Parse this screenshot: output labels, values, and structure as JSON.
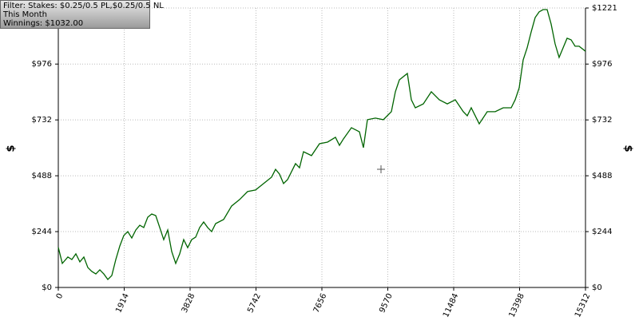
{
  "chart_data": {
    "type": "line",
    "ylabel": "$",
    "annotations": [
      "Filter: Stakes: $0.25/0.5 PL,$0.25/0.5 NL",
      "This Month",
      "Winnings: $1032.00"
    ],
    "xlim": [
      0,
      15312
    ],
    "xticks": [
      0,
      1914,
      3828,
      5742,
      7656,
      9570,
      11484,
      13398,
      15312
    ],
    "ylim": [
      0,
      1221
    ],
    "yticks": [
      {
        "value": 0,
        "label": "$0"
      },
      {
        "value": 244,
        "label": "$244"
      },
      {
        "value": 488,
        "label": "$488"
      },
      {
        "value": 732,
        "label": "$732"
      },
      {
        "value": 976,
        "label": "$976"
      },
      {
        "value": 1221,
        "label": "$1221"
      }
    ],
    "grid": true,
    "x": [
      0,
      116,
      278,
      394,
      510,
      626,
      742,
      858,
      974,
      1090,
      1206,
      1322,
      1438,
      1554,
      1670,
      1786,
      1902,
      2018,
      2134,
      2250,
      2366,
      2482,
      2598,
      2714,
      2830,
      2946,
      3062,
      3178,
      3294,
      3410,
      3526,
      3642,
      3758,
      3874,
      3990,
      4106,
      4222,
      4338,
      4454,
      4570,
      4802,
      5034,
      5266,
      5498,
      5730,
      5962,
      6194,
      6310,
      6426,
      6542,
      6658,
      6890,
      7006,
      7122,
      7354,
      7586,
      7818,
      8050,
      8166,
      8282,
      8514,
      8746,
      8862,
      8978,
      9210,
      9442,
      9674,
      9790,
      9906,
      10138,
      10254,
      10370,
      10602,
      10834,
      11066,
      11298,
      11530,
      11762,
      11878,
      11994,
      12226,
      12458,
      12690,
      12922,
      13154,
      13270,
      13386,
      13502,
      13618,
      13734,
      13850,
      13966,
      14082,
      14198,
      14314,
      14430,
      14546,
      14662,
      14778,
      14894,
      15010,
      15126,
      15312
    ],
    "series": [
      {
        "color": "#006400",
        "values": [
          175,
          105,
          133,
          122,
          147,
          112,
          133,
          87,
          70,
          59,
          77,
          59,
          35,
          52,
          122,
          181,
          227,
          244,
          216,
          251,
          272,
          262,
          307,
          321,
          314,
          262,
          209,
          251,
          157,
          105,
          147,
          209,
          174,
          209,
          220,
          262,
          286,
          262,
          244,
          279,
          297,
          356,
          384,
          419,
          426,
          454,
          482,
          516,
          495,
          454,
          471,
          541,
          523,
          593,
          576,
          628,
          635,
          656,
          621,
          649,
          698,
          680,
          611,
          733,
          740,
          733,
          768,
          855,
          907,
          935,
          820,
          785,
          802,
          855,
          820,
          802,
          820,
          768,
          750,
          785,
          715,
          768,
          768,
          785,
          785,
          820,
          872,
          994,
          1047,
          1116,
          1179,
          1204,
          1214,
          1214,
          1151,
          1064,
          1005,
          1047,
          1089,
          1082,
          1054,
          1054,
          1032
        ]
      }
    ]
  }
}
